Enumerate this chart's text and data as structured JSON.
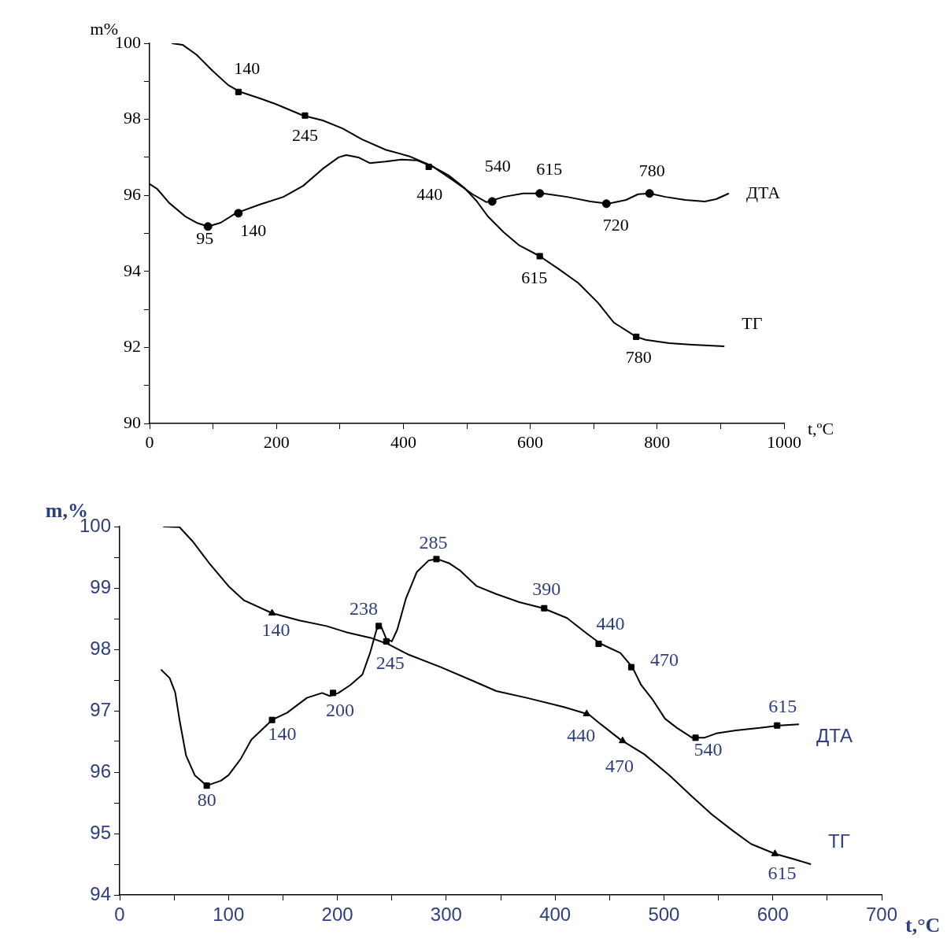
{
  "chart_data": [
    {
      "type": "line",
      "xlabel": "t,ºC",
      "ylabel": "m%",
      "xlim": [
        0,
        1000
      ],
      "ylim": [
        90,
        100
      ],
      "xticks": [
        0,
        {
          "value": 100,
          "label": null
        },
        200,
        {
          "value": 300,
          "label": null
        },
        400,
        {
          "value": 500,
          "label": null
        },
        600,
        {
          "value": 700,
          "label": null
        },
        800,
        {
          "value": 900,
          "label": null
        },
        1000
      ],
      "yticks": [
        90,
        {
          "value": 91,
          "label": null
        },
        92,
        {
          "value": 93,
          "label": null
        },
        94,
        {
          "value": 95,
          "label": null
        },
        96,
        {
          "value": 97,
          "label": null
        },
        98,
        {
          "value": 99,
          "label": null
        },
        100
      ],
      "marker": "none",
      "series": [
        {
          "name": "ТГ",
          "color": "#000000",
          "x": [
            35,
            52,
            74,
            99,
            124,
            143,
            174,
            199,
            242,
            273,
            304,
            335,
            372,
            409,
            444,
            471,
            496,
            515,
            533,
            558,
            583,
            614,
            645,
            676,
            707,
            732,
            767,
            782,
            819,
            856,
            906
          ],
          "values": [
            100,
            99.96,
            99.7,
            99.28,
            98.9,
            98.72,
            98.55,
            98.4,
            98.1,
            97.97,
            97.76,
            97.47,
            97.2,
            97.03,
            96.78,
            96.53,
            96.2,
            95.86,
            95.45,
            95.03,
            94.68,
            94.41,
            94.06,
            93.69,
            93.17,
            92.65,
            92.28,
            92.2,
            92.11,
            92.07,
            92.03
          ]
        },
        {
          "name": "ДТА",
          "color": "#000000",
          "x": [
            0,
            12,
            31,
            56,
            74,
            92,
            112,
            136,
            174,
            211,
            242,
            273,
            298,
            310,
            329,
            347,
            372,
            397,
            422,
            447,
            478,
            509,
            531,
            558,
            589,
            620,
            658,
            695,
            723,
            751,
            770,
            788,
            813,
            844,
            875,
            893,
            913
          ],
          "values": [
            96.3,
            96.17,
            95.8,
            95.45,
            95.28,
            95.18,
            95.28,
            95.53,
            95.76,
            95.96,
            96.25,
            96.7,
            97.0,
            97.06,
            97.0,
            96.85,
            96.89,
            96.94,
            96.92,
            96.75,
            96.4,
            96.03,
            95.82,
            95.96,
            96.05,
            96.05,
            95.96,
            95.84,
            95.78,
            95.88,
            96.03,
            96.05,
            95.96,
            95.88,
            95.84,
            95.9,
            96.05
          ]
        },
        {
          "type": "scatter",
          "marker": "square",
          "color": "#000000",
          "x": [
            140,
            245,
            440,
            615,
            767
          ],
          "values": [
            98.72,
            98.1,
            96.75,
            94.4,
            92.28
          ]
        },
        {
          "type": "scatter",
          "marker": "circle",
          "color": "#000000",
          "x": [
            92,
            140,
            540,
            615,
            720,
            788
          ],
          "values": [
            95.18,
            95.53,
            95.84,
            96.05,
            95.78,
            96.05
          ]
        }
      ],
      "annotations": [
        {
          "text": "140",
          "x": 140,
          "y": 98.72
        },
        {
          "text": "245",
          "x": 245,
          "y": 98.1
        },
        {
          "text": "440",
          "x": 440,
          "y": 96.75
        },
        {
          "text": "615",
          "x": 615,
          "y": 94.4
        },
        {
          "text": "780",
          "x": 767,
          "y": 92.28
        },
        {
          "text": "95",
          "x": 92,
          "y": 95.18
        },
        {
          "text": "140",
          "x": 140,
          "y": 95.53
        },
        {
          "text": "540",
          "x": 540,
          "y": 95.84
        },
        {
          "text": "615",
          "x": 615,
          "y": 96.05
        },
        {
          "text": "720",
          "x": 720,
          "y": 95.78
        },
        {
          "text": "780",
          "x": 788,
          "y": 96.05
        }
      ]
    },
    {
      "type": "line",
      "xlabel": "t,°C",
      "ylabel": "m,%",
      "xlim": [
        0,
        700
      ],
      "ylim": [
        94,
        100
      ],
      "xticks": [
        0,
        {
          "value": 50,
          "label": null
        },
        100,
        {
          "value": 150,
          "label": null
        },
        200,
        {
          "value": 250,
          "label": null
        },
        300,
        {
          "value": 350,
          "label": null
        },
        400,
        {
          "value": 450,
          "label": null
        },
        500,
        {
          "value": 550,
          "label": null
        },
        600,
        {
          "value": 650,
          "label": null
        },
        700
      ],
      "yticks": [
        94,
        {
          "value": 94.5,
          "label": null
        },
        95,
        {
          "value": 95.5,
          "label": null
        },
        96,
        {
          "value": 96.5,
          "label": null
        },
        97,
        {
          "value": 97.5,
          "label": null
        },
        98,
        {
          "value": 98.5,
          "label": null
        },
        99,
        {
          "value": 99.5,
          "label": null
        },
        100
      ],
      "marker": "none",
      "series": [
        {
          "name": "ТГ",
          "color": "#000000",
          "x": [
            40,
            55,
            67,
            82,
            100,
            114,
            140,
            165,
            190,
            208,
            230,
            246,
            266,
            295,
            324,
            346,
            374,
            408,
            431,
            442,
            460,
            482,
            505,
            526,
            544,
            563,
            580,
            602,
            620,
            635
          ],
          "values": [
            100,
            99.99,
            99.76,
            99.41,
            99.03,
            98.8,
            98.59,
            98.47,
            98.38,
            98.28,
            98.19,
            98.09,
            97.91,
            97.71,
            97.49,
            97.32,
            97.21,
            97.06,
            96.94,
            96.78,
            96.53,
            96.29,
            95.95,
            95.6,
            95.31,
            95.05,
            94.83,
            94.67,
            94.58,
            94.5
          ]
        },
        {
          "name": "ДТА",
          "color": "#000000",
          "x": [
            38,
            46,
            51,
            55,
            61,
            69,
            80,
            93,
            100,
            111,
            121,
            140,
            154,
            172,
            186,
            193,
            201,
            212,
            223,
            230,
            236,
            240,
            245,
            250,
            255,
            263,
            273,
            284,
            292,
            303,
            313,
            328,
            346,
            367,
            389,
            411,
            429,
            442,
            460,
            471,
            479,
            490,
            501,
            512,
            526,
            537,
            548,
            566,
            588,
            606,
            624
          ],
          "values": [
            97.67,
            97.53,
            97.3,
            96.85,
            96.27,
            95.95,
            95.78,
            95.86,
            95.95,
            96.21,
            96.53,
            96.85,
            96.97,
            97.21,
            97.29,
            97.24,
            97.29,
            97.42,
            97.59,
            97.94,
            98.32,
            98.38,
            98.17,
            98.13,
            98.32,
            98.83,
            99.26,
            99.45,
            99.47,
            99.4,
            99.28,
            99.03,
            98.9,
            98.77,
            98.67,
            98.51,
            98.26,
            98.09,
            97.94,
            97.71,
            97.42,
            97.17,
            96.87,
            96.72,
            96.56,
            96.56,
            96.63,
            96.68,
            96.72,
            96.76,
            96.78
          ]
        },
        {
          "type": "scatter",
          "marker": "triangle",
          "color": "#000000",
          "x": [
            140,
            429,
            462,
            602
          ],
          "values": [
            98.59,
            96.95,
            96.51,
            94.67
          ]
        },
        {
          "type": "scatter",
          "marker": "square",
          "color": "#000000",
          "x": [
            80,
            140,
            196,
            238,
            245,
            291,
            390,
            440,
            470,
            529,
            604
          ],
          "values": [
            95.78,
            96.85,
            97.29,
            98.38,
            98.13,
            99.47,
            98.67,
            98.09,
            97.71,
            96.56,
            96.76
          ]
        }
      ],
      "annotations": [
        {
          "text": "140",
          "x": 140,
          "y": 98.59
        },
        {
          "text": "440",
          "x": 429,
          "y": 96.95
        },
        {
          "text": "470",
          "x": 462,
          "y": 96.51
        },
        {
          "text": "615",
          "x": 602,
          "y": 94.67
        },
        {
          "text": "80",
          "x": 80,
          "y": 95.78
        },
        {
          "text": "140",
          "x": 140,
          "y": 96.85
        },
        {
          "text": "200",
          "x": 196,
          "y": 97.29
        },
        {
          "text": "238",
          "x": 238,
          "y": 98.38
        },
        {
          "text": "245",
          "x": 245,
          "y": 98.13
        },
        {
          "text": "285",
          "x": 291,
          "y": 99.47
        },
        {
          "text": "390",
          "x": 390,
          "y": 98.67
        },
        {
          "text": "440",
          "x": 440,
          "y": 98.09
        },
        {
          "text": "470",
          "x": 470,
          "y": 97.71
        },
        {
          "text": "540",
          "x": 529,
          "y": 96.56
        },
        {
          "text": "615",
          "x": 604,
          "y": 96.76
        }
      ]
    }
  ]
}
